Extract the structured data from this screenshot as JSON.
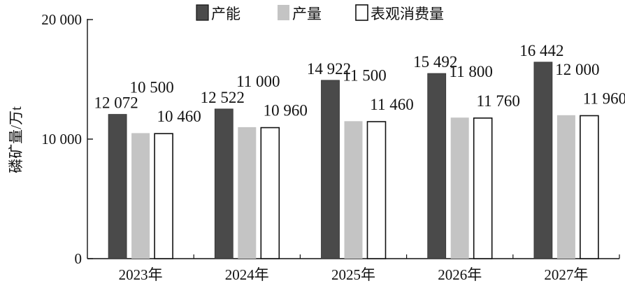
{
  "chart_data": {
    "type": "bar",
    "categories": [
      "2023年",
      "2024年",
      "2025年",
      "2026年",
      "2027年"
    ],
    "series": [
      {
        "name": "产能",
        "values": [
          12072,
          12522,
          14922,
          15492,
          16442
        ],
        "labels": [
          "12 072",
          "12 522",
          "14 922",
          "15 492",
          "16 442"
        ]
      },
      {
        "name": "产量",
        "values": [
          10500,
          11000,
          11500,
          11800,
          12000
        ],
        "labels": [
          "10 500",
          "11 000",
          "11 500",
          "11 800",
          "12 000"
        ]
      },
      {
        "name": "表观消费量",
        "values": [
          10460,
          10960,
          11460,
          11760,
          11960
        ],
        "labels": [
          "10 460",
          "10 960",
          "11 460",
          "11 760",
          "11 960"
        ]
      }
    ],
    "ylabel": "磷矿量/万t",
    "ylim": [
      0,
      20000
    ],
    "yticks": [
      0,
      10000,
      20000
    ],
    "ytick_labels": [
      "0",
      "10 000",
      "20 000"
    ],
    "grid": false,
    "legend_position": "top",
    "colors": {
      "产能": "#4a4a4a",
      "产量": "#c4c4c4",
      "表观消费量": "#ffffff"
    }
  }
}
